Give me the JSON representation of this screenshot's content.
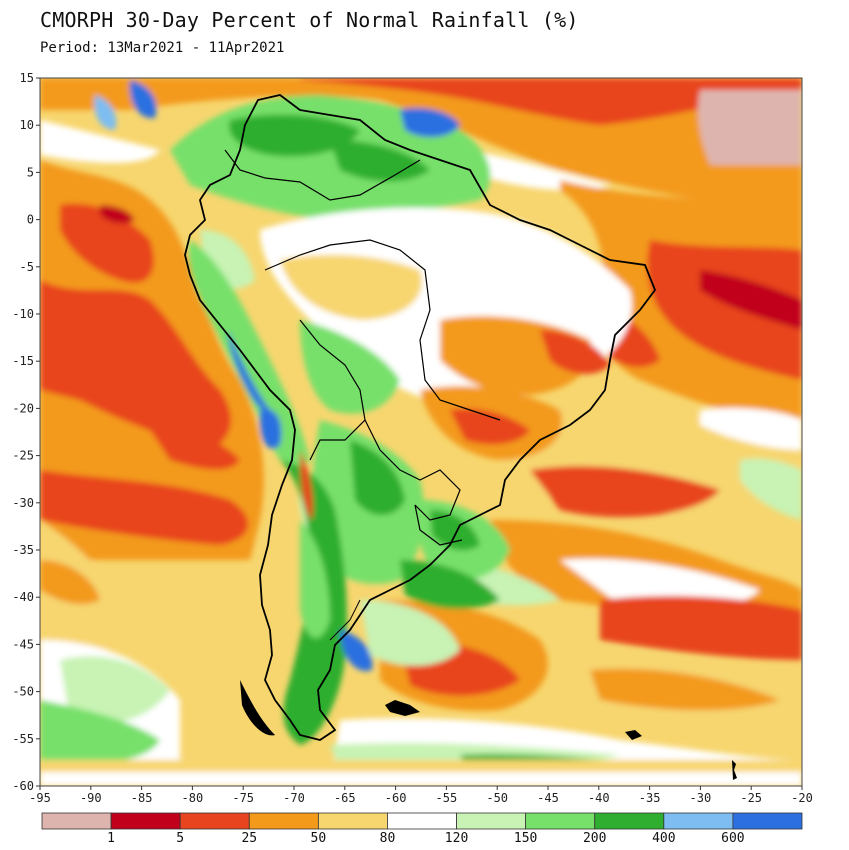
{
  "title": "CMORPH 30-Day Percent of Normal Rainfall (%)",
  "subtitle": "Period: 13Mar2021 - 11Apr2021",
  "map": {
    "region": "South America",
    "lon_range": [
      -95,
      -20
    ],
    "lat_range": [
      -60,
      15
    ],
    "x_ticks": [
      "-95",
      "-90",
      "-85",
      "-80",
      "-75",
      "-70",
      "-65",
      "-60",
      "-55",
      "-50",
      "-45",
      "-40",
      "-35",
      "-30",
      "-25",
      "-20"
    ],
    "y_ticks": [
      "15",
      "10",
      "5",
      "0",
      "-5",
      "-10",
      "-15",
      "-20",
      "-25",
      "-30",
      "-35",
      "-40",
      "-45",
      "-50",
      "-55",
      "-60"
    ]
  },
  "colorbar": {
    "colors": [
      "#deb5ae",
      "#c1001b",
      "#e8441f",
      "#f39a1a",
      "#f7d66f",
      "#ffffff",
      "#c8f3b4",
      "#77e06b",
      "#2fae2f",
      "#7dbdf1",
      "#2b6fe0"
    ],
    "labels": [
      "1",
      "5",
      "25",
      "50",
      "80",
      "120",
      "150",
      "200",
      "400",
      "600"
    ]
  },
  "palette": {
    "dry_extreme": "#c1001b",
    "dry": "#e8441f",
    "below": "#f39a1a",
    "slightly_below": "#f7d66f",
    "normal": "#ffffff",
    "above": "#77e06b",
    "wet": "#2fae2f",
    "very_wet": "#2b6fe0",
    "land_outline": "#000000"
  }
}
